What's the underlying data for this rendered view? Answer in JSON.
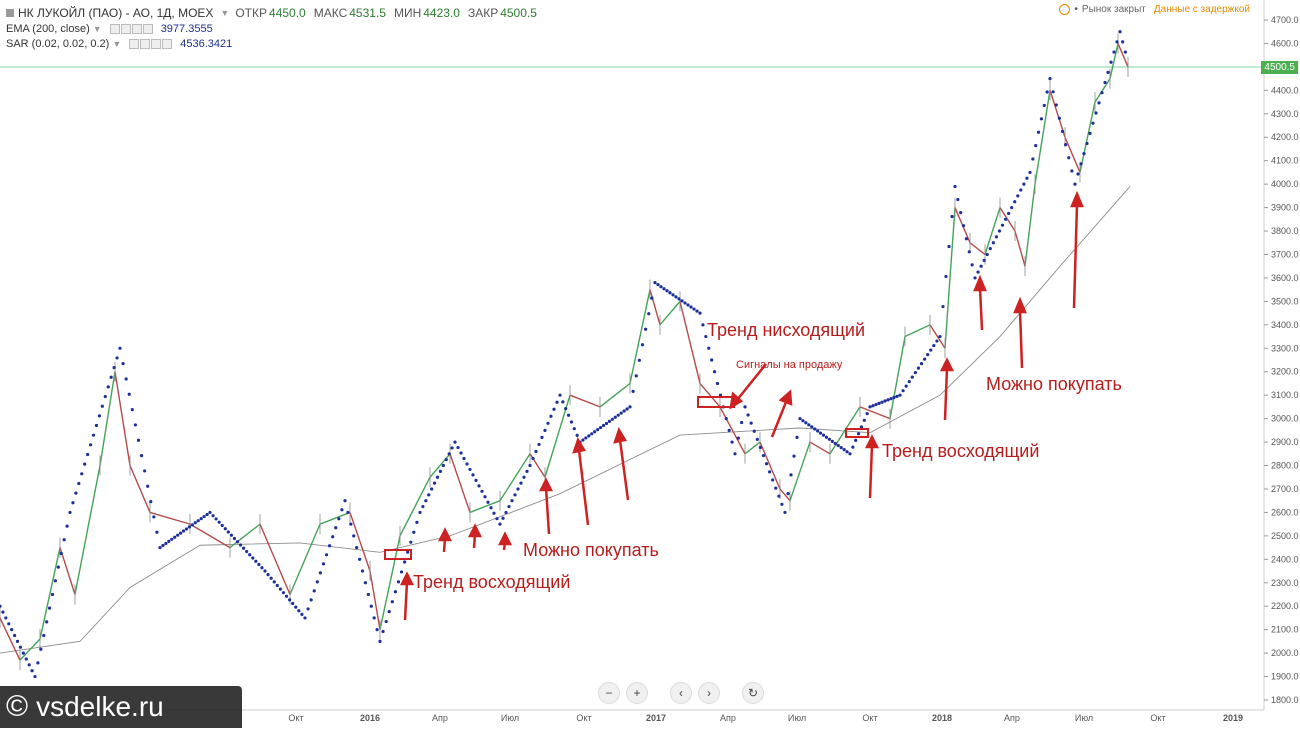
{
  "header": {
    "title": "НК ЛУКОЙЛ (ПАО) - АО, 1Д, МОЕХ",
    "ohlc": [
      {
        "label": "ОТКР",
        "value": "4450.0"
      },
      {
        "label": "МАКС",
        "value": "4531.5"
      },
      {
        "label": "МИН",
        "value": "4423.0"
      },
      {
        "label": "ЗАКР",
        "value": "4500.5"
      }
    ]
  },
  "indicators": [
    {
      "name": "EMA (200, close)",
      "value": "3977.3555"
    },
    {
      "name": "SAR (0.02, 0.02, 0.2)",
      "value": "4536.3421"
    }
  ],
  "status": {
    "market": "Рынок закрыт",
    "delayed": "Данные с задержкой"
  },
  "price_axis": {
    "ticks": [
      "4700.0",
      "4600.0",
      "4500.0",
      "4400.0",
      "4300.0",
      "4200.0",
      "4100.0",
      "4000.0",
      "3900.0",
      "3800.0",
      "3700.0",
      "3600.0",
      "3500.0",
      "3400.0",
      "3300.0",
      "3200.0",
      "3100.0",
      "3000.0",
      "2900.0",
      "2800.0",
      "2700.0",
      "2600.0",
      "2500.0",
      "2400.0",
      "2300.0",
      "2200.0",
      "2100.0",
      "2000.0",
      "1900.0",
      "1800.0"
    ],
    "current": "4500.5"
  },
  "time_axis": {
    "labels": [
      {
        "text": "Окт",
        "bold": false
      },
      {
        "text": "2016",
        "bold": true
      },
      {
        "text": "Апр",
        "bold": false
      },
      {
        "text": "Июл",
        "bold": false
      },
      {
        "text": "Окт",
        "bold": false
      },
      {
        "text": "2017",
        "bold": true
      },
      {
        "text": "Апр",
        "bold": false
      },
      {
        "text": "Июл",
        "bold": false
      },
      {
        "text": "Окт",
        "bold": false
      },
      {
        "text": "2018",
        "bold": true
      },
      {
        "text": "Апр",
        "bold": false
      },
      {
        "text": "Июл",
        "bold": false
      },
      {
        "text": "Окт",
        "bold": false
      },
      {
        "text": "2019",
        "bold": true
      }
    ]
  },
  "annotations": [
    "Тренд восходящий",
    "Можно покупать",
    "Тренд нисходящий",
    "Сигналы на продажу",
    "Тренд восходящий",
    "Можно покупать"
  ],
  "chart_data": {
    "type": "line",
    "series": [
      {
        "name": "EMA (200, close)",
        "points": [
          [
            0,
            2000
          ],
          [
            80,
            2050
          ],
          [
            130,
            2280
          ],
          [
            200,
            2460
          ],
          [
            300,
            2470
          ],
          [
            380,
            2430
          ],
          [
            450,
            2500
          ],
          [
            560,
            2680
          ],
          [
            680,
            2930
          ],
          [
            800,
            2960
          ],
          [
            870,
            2940
          ],
          [
            940,
            3100
          ],
          [
            1000,
            3350
          ],
          [
            1060,
            3650
          ],
          [
            1130,
            3990
          ]
        ]
      },
      {
        "name": "Price",
        "points": [
          [
            0,
            2150
          ],
          [
            20,
            1970
          ],
          [
            40,
            2060
          ],
          [
            60,
            2450
          ],
          [
            75,
            2250
          ],
          [
            100,
            2800
          ],
          [
            115,
            3200
          ],
          [
            130,
            2800
          ],
          [
            150,
            2600
          ],
          [
            190,
            2550
          ],
          [
            230,
            2450
          ],
          [
            260,
            2550
          ],
          [
            290,
            2250
          ],
          [
            320,
            2550
          ],
          [
            350,
            2600
          ],
          [
            370,
            2350
          ],
          [
            380,
            2100
          ],
          [
            400,
            2500
          ],
          [
            430,
            2750
          ],
          [
            450,
            2850
          ],
          [
            470,
            2600
          ],
          [
            500,
            2650
          ],
          [
            530,
            2850
          ],
          [
            545,
            2750
          ],
          [
            570,
            3100
          ],
          [
            600,
            3050
          ],
          [
            630,
            3150
          ],
          [
            650,
            3550
          ],
          [
            660,
            3400
          ],
          [
            680,
            3500
          ],
          [
            700,
            3150
          ],
          [
            720,
            3050
          ],
          [
            745,
            2850
          ],
          [
            760,
            2900
          ],
          [
            780,
            2700
          ],
          [
            790,
            2650
          ],
          [
            810,
            2900
          ],
          [
            830,
            2850
          ],
          [
            860,
            3050
          ],
          [
            890,
            3000
          ],
          [
            905,
            3350
          ],
          [
            930,
            3400
          ],
          [
            945,
            3300
          ],
          [
            955,
            3900
          ],
          [
            970,
            3750
          ],
          [
            985,
            3700
          ],
          [
            1000,
            3900
          ],
          [
            1015,
            3800
          ],
          [
            1025,
            3650
          ],
          [
            1035,
            4000
          ],
          [
            1050,
            4400
          ],
          [
            1065,
            4200
          ],
          [
            1080,
            4050
          ],
          [
            1095,
            4350
          ],
          [
            1110,
            4450
          ],
          [
            1118,
            4600
          ],
          [
            1128,
            4500
          ]
        ]
      },
      {
        "name": "SAR (0.02, 0.02, 0.2)",
        "points": [
          [
            0,
            2200
          ],
          [
            35,
            1900
          ],
          [
            70,
            2600
          ],
          [
            120,
            3300
          ],
          [
            160,
            2450
          ],
          [
            210,
            2600
          ],
          [
            265,
            2350
          ],
          [
            305,
            2150
          ],
          [
            345,
            2650
          ],
          [
            380,
            2050
          ],
          [
            420,
            2600
          ],
          [
            455,
            2900
          ],
          [
            500,
            2550
          ],
          [
            530,
            2800
          ],
          [
            560,
            3100
          ],
          [
            580,
            2900
          ],
          [
            630,
            3050
          ],
          [
            655,
            3580
          ],
          [
            700,
            3450
          ],
          [
            735,
            2850
          ],
          [
            745,
            3050
          ],
          [
            785,
            2600
          ],
          [
            800,
            3000
          ],
          [
            850,
            2850
          ],
          [
            870,
            3050
          ],
          [
            900,
            3100
          ],
          [
            940,
            3350
          ],
          [
            955,
            3990
          ],
          [
            975,
            3600
          ],
          [
            1030,
            4050
          ],
          [
            1050,
            4450
          ],
          [
            1075,
            4000
          ],
          [
            1120,
            4650
          ],
          [
            1128,
            4520
          ]
        ]
      }
    ],
    "ylim": [
      1760,
      4740
    ]
  },
  "watermark": "vsdelke.ru"
}
